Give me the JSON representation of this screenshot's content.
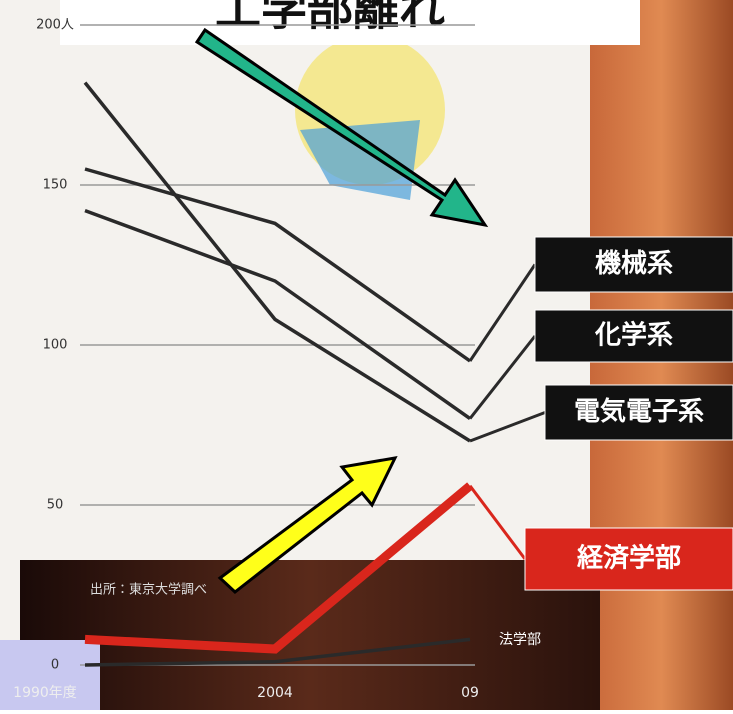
{
  "chart_data": {
    "type": "line",
    "title": "工学部離れ",
    "source": "出所：東京大学調べ",
    "categories": [
      "1990年度",
      "2004",
      "09"
    ],
    "series": [
      {
        "name": "機械系",
        "color": "#2a2a2a",
        "values": [
          155,
          138,
          95
        ]
      },
      {
        "name": "化学系",
        "color": "#2a2a2a",
        "values": [
          142,
          120,
          77
        ]
      },
      {
        "name": "電気電子系",
        "color": "#2a2a2a",
        "values": [
          182,
          108,
          70
        ]
      },
      {
        "name": "経済学部",
        "color": "#d9261c",
        "values": [
          8,
          5,
          56
        ]
      },
      {
        "name": "法学部",
        "color": "#2a2a2a",
        "values": [
          0,
          1,
          8
        ]
      }
    ],
    "ylim": [
      0,
      200
    ],
    "yticks": [
      0,
      50,
      100,
      {
        "value": 150,
        "label": "150"
      },
      {
        "value": 200,
        "label": "200人"
      }
    ],
    "grid": true
  }
}
